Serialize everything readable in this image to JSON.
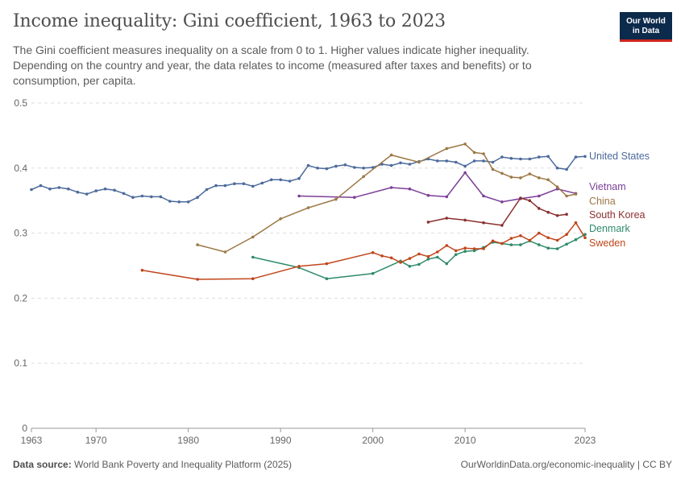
{
  "header": {
    "title": "Income inequality: Gini coefficient, 1963 to 2023",
    "subtitle": "The Gini coefficient measures inequality on a scale from 0 to 1. Higher values indicate higher inequality. Depending on the country and year, the data relates to income (measured after taxes and benefits) or to consumption, per capita.",
    "logo_line1": "Our World",
    "logo_line2": "in Data"
  },
  "footer": {
    "source_label": "Data source:",
    "source_text": "World Bank Poverty and Inequality Platform (2025)",
    "right_text": "OurWorldinData.org/economic-inequality | CC BY"
  },
  "colors": {
    "logo_bg": "#0c2a4b",
    "logo_accent": "#ce261e"
  },
  "chart_data": {
    "type": "line",
    "title": "Income inequality: Gini coefficient, 1963 to 2023",
    "xlabel": "",
    "ylabel": "",
    "xlim": [
      1963,
      2023
    ],
    "ylim": [
      0,
      0.5
    ],
    "x_ticks": [
      "1963",
      "1970",
      "1980",
      "1990",
      "2000",
      "2010",
      "2023"
    ],
    "y_ticks": [
      "0",
      "0.1",
      "0.2",
      "0.3",
      "0.4",
      "0.5"
    ],
    "grid": "horizontal dashed",
    "legend": "right, labels at line ends",
    "series": [
      {
        "name": "United States",
        "color": "#4c6a9c",
        "points": [
          [
            1963,
            0.367
          ],
          [
            1964,
            0.373
          ],
          [
            1965,
            0.368
          ],
          [
            1966,
            0.37
          ],
          [
            1967,
            0.368
          ],
          [
            1968,
            0.363
          ],
          [
            1969,
            0.36
          ],
          [
            1970,
            0.365
          ],
          [
            1971,
            0.368
          ],
          [
            1972,
            0.366
          ],
          [
            1973,
            0.361
          ],
          [
            1974,
            0.355
          ],
          [
            1975,
            0.357
          ],
          [
            1976,
            0.356
          ],
          [
            1977,
            0.356
          ],
          [
            1978,
            0.349
          ],
          [
            1979,
            0.348
          ],
          [
            1980,
            0.348
          ],
          [
            1981,
            0.355
          ],
          [
            1982,
            0.367
          ],
          [
            1983,
            0.373
          ],
          [
            1984,
            0.373
          ],
          [
            1985,
            0.376
          ],
          [
            1986,
            0.376
          ],
          [
            1987,
            0.372
          ],
          [
            1988,
            0.377
          ],
          [
            1989,
            0.382
          ],
          [
            1990,
            0.382
          ],
          [
            1991,
            0.38
          ],
          [
            1992,
            0.384
          ],
          [
            1993,
            0.404
          ],
          [
            1994,
            0.4
          ],
          [
            1995,
            0.399
          ],
          [
            1996,
            0.403
          ],
          [
            1997,
            0.405
          ],
          [
            1998,
            0.401
          ],
          [
            1999,
            0.4
          ],
          [
            2000,
            0.401
          ],
          [
            2001,
            0.406
          ],
          [
            2002,
            0.404
          ],
          [
            2003,
            0.408
          ],
          [
            2004,
            0.406
          ],
          [
            2005,
            0.41
          ],
          [
            2006,
            0.414
          ],
          [
            2007,
            0.411
          ],
          [
            2008,
            0.411
          ],
          [
            2009,
            0.409
          ],
          [
            2010,
            0.403
          ],
          [
            2011,
            0.411
          ],
          [
            2012,
            0.411
          ],
          [
            2013,
            0.409
          ],
          [
            2014,
            0.417
          ],
          [
            2015,
            0.415
          ],
          [
            2016,
            0.414
          ],
          [
            2017,
            0.414
          ],
          [
            2018,
            0.417
          ],
          [
            2019,
            0.418
          ],
          [
            2020,
            0.4
          ],
          [
            2021,
            0.398
          ],
          [
            2022,
            0.417
          ],
          [
            2023,
            0.418
          ]
        ]
      },
      {
        "name": "Vietnam",
        "color": "#7b3f98",
        "points": [
          [
            1992,
            0.357
          ],
          [
            1998,
            0.355
          ],
          [
            2002,
            0.37
          ],
          [
            2004,
            0.368
          ],
          [
            2006,
            0.358
          ],
          [
            2008,
            0.356
          ],
          [
            2010,
            0.393
          ],
          [
            2012,
            0.357
          ],
          [
            2014,
            0.348
          ],
          [
            2016,
            0.353
          ],
          [
            2018,
            0.357
          ],
          [
            2020,
            0.368
          ],
          [
            2022,
            0.361
          ]
        ]
      },
      {
        "name": "China",
        "color": "#9b7845",
        "points": [
          [
            1981,
            0.282
          ],
          [
            1984,
            0.271
          ],
          [
            1987,
            0.294
          ],
          [
            1990,
            0.322
          ],
          [
            1993,
            0.339
          ],
          [
            1996,
            0.352
          ],
          [
            1999,
            0.387
          ],
          [
            2002,
            0.42
          ],
          [
            2005,
            0.409
          ],
          [
            2008,
            0.43
          ],
          [
            2010,
            0.437
          ],
          [
            2011,
            0.424
          ],
          [
            2012,
            0.422
          ],
          [
            2013,
            0.398
          ],
          [
            2014,
            0.392
          ],
          [
            2015,
            0.386
          ],
          [
            2016,
            0.385
          ],
          [
            2017,
            0.391
          ],
          [
            2018,
            0.385
          ],
          [
            2019,
            0.382
          ],
          [
            2020,
            0.371
          ],
          [
            2021,
            0.357
          ],
          [
            2022,
            0.36
          ]
        ]
      },
      {
        "name": "South Korea",
        "color": "#8b2f2f",
        "points": [
          [
            2006,
            0.317
          ],
          [
            2008,
            0.323
          ],
          [
            2010,
            0.32
          ],
          [
            2012,
            0.316
          ],
          [
            2014,
            0.312
          ],
          [
            2016,
            0.354
          ],
          [
            2017,
            0.35
          ],
          [
            2018,
            0.338
          ],
          [
            2019,
            0.332
          ],
          [
            2020,
            0.327
          ],
          [
            2021,
            0.329
          ]
        ]
      },
      {
        "name": "Denmark",
        "color": "#2e8b6a",
        "points": [
          [
            1987,
            0.263
          ],
          [
            1992,
            0.247
          ],
          [
            1995,
            0.23
          ],
          [
            2000,
            0.238
          ],
          [
            2003,
            0.257
          ],
          [
            2004,
            0.249
          ],
          [
            2005,
            0.252
          ],
          [
            2006,
            0.26
          ],
          [
            2007,
            0.263
          ],
          [
            2008,
            0.253
          ],
          [
            2009,
            0.267
          ],
          [
            2010,
            0.272
          ],
          [
            2011,
            0.273
          ],
          [
            2012,
            0.278
          ],
          [
            2013,
            0.286
          ],
          [
            2014,
            0.284
          ],
          [
            2015,
            0.282
          ],
          [
            2016,
            0.282
          ],
          [
            2017,
            0.288
          ],
          [
            2018,
            0.282
          ],
          [
            2019,
            0.277
          ],
          [
            2020,
            0.276
          ],
          [
            2021,
            0.283
          ],
          [
            2022,
            0.29
          ],
          [
            2023,
            0.298
          ]
        ]
      },
      {
        "name": "Sweden",
        "color": "#c0451a",
        "points": [
          [
            1975,
            0.243
          ],
          [
            1981,
            0.229
          ],
          [
            1987,
            0.23
          ],
          [
            1992,
            0.249
          ],
          [
            1995,
            0.253
          ],
          [
            2000,
            0.27
          ],
          [
            2001,
            0.265
          ],
          [
            2002,
            0.262
          ],
          [
            2003,
            0.255
          ],
          [
            2004,
            0.261
          ],
          [
            2005,
            0.268
          ],
          [
            2006,
            0.264
          ],
          [
            2007,
            0.271
          ],
          [
            2008,
            0.281
          ],
          [
            2009,
            0.273
          ],
          [
            2010,
            0.277
          ],
          [
            2011,
            0.276
          ],
          [
            2012,
            0.276
          ],
          [
            2013,
            0.288
          ],
          [
            2014,
            0.284
          ],
          [
            2015,
            0.292
          ],
          [
            2016,
            0.296
          ],
          [
            2017,
            0.289
          ],
          [
            2018,
            0.3
          ],
          [
            2019,
            0.293
          ],
          [
            2020,
            0.289
          ],
          [
            2021,
            0.298
          ],
          [
            2022,
            0.316
          ],
          [
            2023,
            0.293
          ]
        ]
      }
    ]
  }
}
